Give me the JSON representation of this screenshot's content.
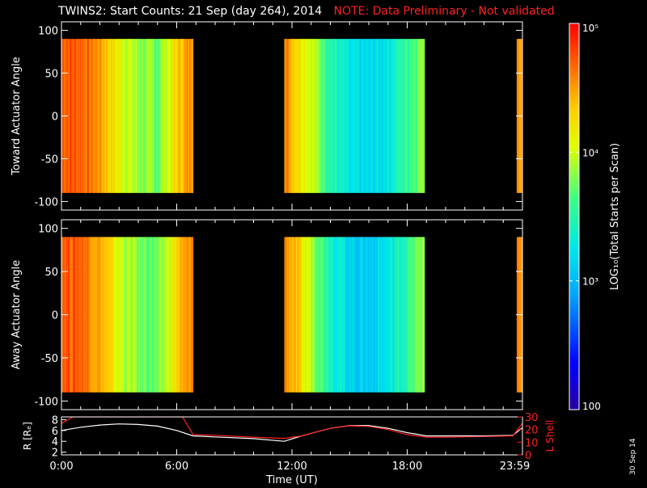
{
  "title": "TWINS2: Start Counts: 21 Sep (day 264), 2014",
  "note": "NOTE: Data Preliminary - Not validated",
  "date_stamp": "30 Sep 14",
  "colors": {
    "background": "#000000",
    "axes": "#ffffff",
    "note": "#ff2020",
    "r_line": "#ffffff",
    "lshell_line": "#ff2020"
  },
  "chart_data": [
    {
      "type": "heatmap",
      "name": "toward-panel",
      "ylabel": "Toward Actuator Angle",
      "ylim": [
        -110,
        110
      ],
      "yticks": [
        -100,
        -50,
        0,
        50,
        100
      ],
      "xlim": [
        0,
        24
      ],
      "data_ylim": [
        -90,
        90
      ],
      "data_intervals": [
        [
          0,
          6.85
        ],
        [
          11.6,
          18.9
        ],
        [
          23.7,
          24
        ]
      ],
      "log_counts_by_hour": [
        [
          0.0,
          4.75
        ],
        [
          1.0,
          4.7
        ],
        [
          2.0,
          4.5
        ],
        [
          3.0,
          4.1
        ],
        [
          4.0,
          3.85
        ],
        [
          5.0,
          3.75
        ],
        [
          6.0,
          4.3
        ],
        [
          6.85,
          4.6
        ],
        [
          11.6,
          4.6
        ],
        [
          12.0,
          4.4
        ],
        [
          13.0,
          4.0
        ],
        [
          14.0,
          3.5
        ],
        [
          15.0,
          3.2
        ],
        [
          16.0,
          3.15
        ],
        [
          17.0,
          3.3
        ],
        [
          18.0,
          3.6
        ],
        [
          18.9,
          3.9
        ],
        [
          23.7,
          4.6
        ],
        [
          24.0,
          4.5
        ]
      ]
    },
    {
      "type": "heatmap",
      "name": "away-panel",
      "ylabel": "Away Actuator Angle",
      "ylim": [
        -110,
        110
      ],
      "yticks": [
        -100,
        -50,
        0,
        50,
        100
      ],
      "xlim": [
        0,
        24
      ],
      "data_ylim": [
        -90,
        90
      ],
      "data_intervals": [
        [
          0,
          6.85
        ],
        [
          11.6,
          18.9
        ],
        [
          23.7,
          24
        ]
      ],
      "log_counts_by_hour": [
        [
          0.0,
          4.75
        ],
        [
          1.0,
          4.7
        ],
        [
          2.0,
          4.45
        ],
        [
          3.0,
          4.0
        ],
        [
          4.0,
          3.8
        ],
        [
          5.0,
          3.7
        ],
        [
          6.0,
          4.3
        ],
        [
          6.85,
          4.6
        ],
        [
          11.6,
          4.6
        ],
        [
          12.0,
          4.4
        ],
        [
          13.0,
          3.95
        ],
        [
          14.0,
          3.45
        ],
        [
          15.0,
          3.15
        ],
        [
          16.0,
          3.1
        ],
        [
          17.0,
          3.25
        ],
        [
          18.0,
          3.55
        ],
        [
          18.9,
          3.9
        ],
        [
          23.7,
          4.6
        ],
        [
          24.0,
          4.5
        ]
      ]
    },
    {
      "type": "line",
      "name": "orbit-panel",
      "ylabel": "R [Rₑ]",
      "ylabel_right": "L Shell",
      "xlabel": "Time (UT)",
      "xlim": [
        0,
        24
      ],
      "ylim": [
        1.5,
        8.5
      ],
      "yticks": [
        2,
        4,
        6,
        8
      ],
      "ylim_right": [
        0,
        30
      ],
      "yticks_right": [
        0,
        10,
        20,
        30
      ],
      "xticks": [
        0,
        6,
        12,
        18,
        23.98
      ],
      "xtick_labels": [
        "0:00",
        "6:00",
        "12:00",
        "18:00",
        "23:59"
      ],
      "series": [
        {
          "axis": "left",
          "x": [
            0,
            1,
            2,
            3,
            4,
            5,
            6,
            6.85,
            8,
            10,
            11.6,
            12.5,
            14,
            15,
            16,
            17,
            18,
            19,
            20,
            22,
            23.5,
            24
          ],
          "y": [
            6.0,
            6.6,
            7.0,
            7.2,
            7.1,
            6.8,
            6.0,
            5.0,
            4.8,
            4.5,
            4.0,
            5.0,
            6.4,
            6.9,
            6.9,
            6.4,
            5.6,
            5.0,
            5.0,
            5.0,
            5.1,
            6.5
          ]
        },
        {
          "axis": "right",
          "x": [
            0,
            0.6,
            6.3,
            6.85,
            8,
            10,
            11.6,
            12.5,
            14,
            15,
            16,
            17,
            18,
            19,
            20,
            22,
            23.5,
            24
          ],
          "y": [
            25,
            30,
            30,
            16,
            15.5,
            14,
            13,
            15,
            21,
            23,
            22.5,
            20,
            16,
            14,
            14,
            14.5,
            15,
            25
          ]
        }
      ]
    }
  ],
  "colorbar": {
    "label": "LOG₁₀(Total Starts per Scan)",
    "min_log": 2,
    "max_log": 5,
    "tick_logs": [
      2,
      3,
      4,
      5
    ],
    "tick_labels": [
      "100",
      "10³",
      "10⁴",
      "10⁵"
    ]
  }
}
